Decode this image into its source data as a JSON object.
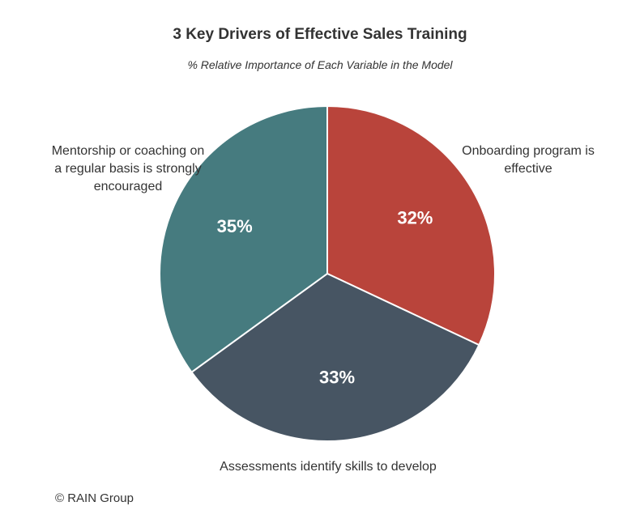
{
  "title": "3 Key Drivers of Effective Sales Training",
  "subtitle": "% Relative Importance of Each Variable in the Model",
  "credit": "© RAIN Group",
  "chart_data": {
    "type": "pie",
    "title": "3 Key Drivers of Effective Sales Training",
    "subtitle": "% Relative Importance of Each Variable in the Model",
    "categories": [
      "Onboarding program is effective",
      "Assessments identify skills to develop",
      "Mentorship or coaching on a regular basis is strongly encouraged"
    ],
    "values": [
      32,
      33,
      35
    ],
    "value_labels": [
      "32%",
      "33%",
      "35%"
    ],
    "colors": [
      "#b9443b",
      "#475563",
      "#467b7f"
    ],
    "start_angle": "12 o'clock",
    "direction": "clockwise",
    "legend": "none (category labels placed beside slices)"
  }
}
